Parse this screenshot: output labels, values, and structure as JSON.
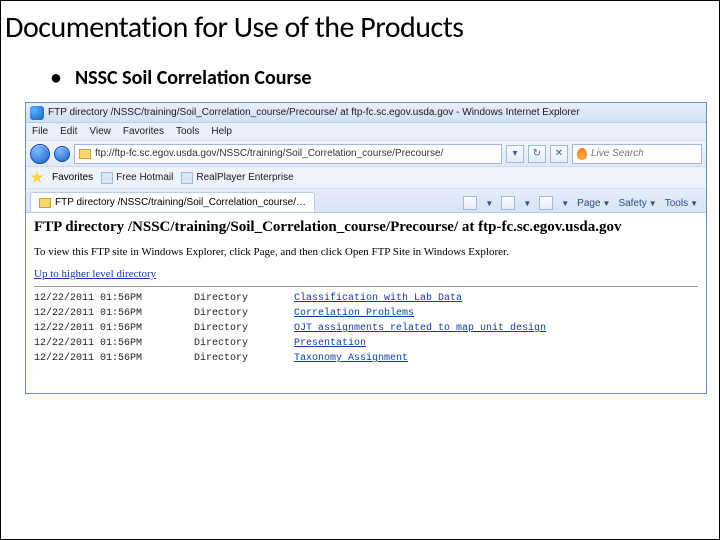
{
  "slide": {
    "title": "Documentation for Use of the Products",
    "bullet": "NSSC Soil Correlation Course"
  },
  "browser": {
    "window_title": "FTP directory /NSSC/training/Soil_Correlation_course/Precourse/ at ftp-fc.sc.egov.usda.gov - Windows Internet Explorer",
    "menu": {
      "file": "File",
      "edit": "Edit",
      "view": "View",
      "favorites": "Favorites",
      "tools": "Tools",
      "help": "Help"
    },
    "url": "ftp://ftp-fc.sc.egov.usda.gov/NSSC/training/Soil_Correlation_course/Precourse/",
    "search_placeholder": "Live Search",
    "favbar": {
      "label": "Favorites",
      "link1": "Free Hotmail",
      "link2": "RealPlayer Enterprise"
    },
    "tab_label": "FTP directory /NSSC/training/Soil_Correlation_course/…",
    "tools": {
      "page": "Page",
      "safety": "Safety",
      "toolsmenu": "Tools"
    },
    "heading": "FTP directory /NSSC/training/Soil_Correlation_course/Precourse/ at ftp-fc.sc.egov.usda.gov",
    "hint": "To view this FTP site in Windows Explorer, click Page, and then click Open FTP Site in Windows Explorer.",
    "uplink": "Up to higher level directory",
    "listing": [
      {
        "date": "12/22/2011 01:56PM",
        "type": "Directory",
        "name": "Classification with Lab Data"
      },
      {
        "date": "12/22/2011 01:56PM",
        "type": "Directory",
        "name": "Correlation Problems"
      },
      {
        "date": "12/22/2011 01:56PM",
        "type": "Directory",
        "name": "OJT assignments related to map unit design"
      },
      {
        "date": "12/22/2011 01:56PM",
        "type": "Directory",
        "name": "Presentation"
      },
      {
        "date": "12/22/2011 01:56PM",
        "type": "Directory",
        "name": "Taxonomy Assignment"
      }
    ]
  }
}
